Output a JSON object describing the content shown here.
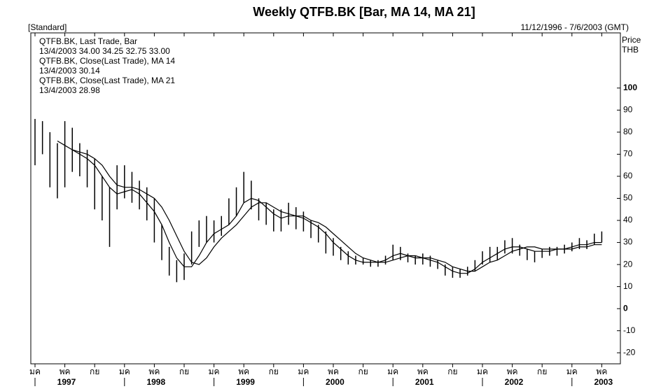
{
  "chart_data": {
    "type": "bar-ma",
    "title": "Weekly QTFB.BK [Bar, MA 14, MA 21]",
    "subtitle": "[Standard]",
    "date_range": "11/12/1996 - 7/6/2003 (GMT)",
    "legend_text": [
      "QTFB.BK, Last Trade, Bar",
      "13/4/2003 34.00 34.25 32.75 33.00",
      "QTFB.BK, Close(Last Trade), MA 14",
      "13/4/2003 30.14",
      "QTFB.BK, Close(Last Trade), MA 21",
      "13/4/2003 28.98"
    ],
    "y_label": [
      "Price",
      "THB"
    ],
    "ylim": [
      -25,
      125
    ],
    "yticks": [
      100,
      90,
      80,
      70,
      60,
      50,
      40,
      30,
      20,
      10,
      0,
      -10,
      -20
    ],
    "color": "#000000",
    "x": [
      "1997-01",
      "1997-02",
      "1997-03",
      "1997-04",
      "1997-05",
      "1997-06",
      "1997-07",
      "1997-08",
      "1997-09",
      "1997-10",
      "1997-11",
      "1997-12",
      "1998-01",
      "1998-02",
      "1998-03",
      "1998-04",
      "1998-05",
      "1998-06",
      "1998-07",
      "1998-08",
      "1998-09",
      "1998-10",
      "1998-11",
      "1998-12",
      "1999-01",
      "1999-02",
      "1999-03",
      "1999-04",
      "1999-05",
      "1999-06",
      "1999-07",
      "1999-08",
      "1999-09",
      "1999-10",
      "1999-11",
      "1999-12",
      "2000-01",
      "2000-02",
      "2000-03",
      "2000-04",
      "2000-05",
      "2000-06",
      "2000-07",
      "2000-08",
      "2000-09",
      "2000-10",
      "2000-11",
      "2000-12",
      "2001-01",
      "2001-02",
      "2001-03",
      "2001-04",
      "2001-05",
      "2001-06",
      "2001-07",
      "2001-08",
      "2001-09",
      "2001-10",
      "2001-11",
      "2001-12",
      "2002-01",
      "2002-02",
      "2002-03",
      "2002-04",
      "2002-05",
      "2002-06",
      "2002-07",
      "2002-08",
      "2002-09",
      "2002-10",
      "2002-11",
      "2002-12",
      "2003-01",
      "2003-02",
      "2003-03",
      "2003-04",
      "2003-05"
    ],
    "high": [
      86,
      85,
      80,
      75,
      85,
      82,
      75,
      72,
      68,
      60,
      55,
      65,
      65,
      62,
      58,
      55,
      50,
      38,
      28,
      22,
      25,
      35,
      40,
      42,
      40,
      42,
      50,
      55,
      62,
      58,
      50,
      48,
      45,
      45,
      48,
      46,
      44,
      40,
      38,
      35,
      32,
      28,
      26,
      24,
      23,
      22,
      22,
      24,
      29,
      28,
      25,
      24,
      25,
      24,
      22,
      20,
      19,
      18,
      19,
      22,
      26,
      28,
      28,
      31,
      32,
      29,
      27,
      26,
      27,
      28,
      28,
      29,
      30,
      32,
      31,
      34,
      35
    ],
    "low": [
      65,
      70,
      55,
      50,
      55,
      62,
      60,
      55,
      45,
      40,
      28,
      45,
      50,
      48,
      45,
      40,
      30,
      22,
      15,
      12,
      13,
      20,
      28,
      30,
      30,
      33,
      38,
      42,
      48,
      45,
      40,
      38,
      35,
      35,
      38,
      36,
      35,
      32,
      30,
      25,
      24,
      22,
      20,
      20,
      20,
      19,
      19,
      20,
      22,
      22,
      21,
      20,
      20,
      19,
      18,
      15,
      14,
      14,
      15,
      17,
      20,
      21,
      22,
      25,
      25,
      24,
      22,
      21,
      23,
      24,
      24,
      25,
      26,
      27,
      27,
      29,
      30
    ],
    "series": [
      {
        "name": "MA 14",
        "color": "#000000",
        "values": [
          null,
          null,
          null,
          76,
          74,
          72,
          70,
          68,
          65,
          60,
          55,
          52,
          53,
          54,
          52,
          48,
          44,
          38,
          30,
          23,
          19,
          19,
          24,
          30,
          34,
          36,
          38,
          42,
          48,
          50,
          49,
          46,
          43,
          41,
          42,
          42,
          41,
          39,
          37,
          34,
          30,
          27,
          24,
          22,
          21,
          21,
          21,
          22,
          24,
          25,
          24,
          23,
          23,
          22,
          21,
          19,
          17,
          16,
          16,
          18,
          21,
          23,
          25,
          27,
          28,
          28,
          27,
          26,
          26,
          26,
          27,
          27,
          28,
          29,
          29,
          30,
          30
        ]
      },
      {
        "name": "MA 21",
        "color": "#000000",
        "values": [
          null,
          null,
          null,
          null,
          null,
          72,
          71,
          70,
          68,
          65,
          60,
          56,
          55,
          55,
          54,
          52,
          50,
          46,
          40,
          33,
          26,
          21,
          20,
          23,
          28,
          32,
          35,
          38,
          42,
          46,
          48,
          48,
          46,
          44,
          43,
          42,
          42,
          40,
          39,
          37,
          34,
          31,
          28,
          25,
          23,
          22,
          21,
          21,
          22,
          23,
          24,
          24,
          23,
          23,
          22,
          21,
          19,
          18,
          17,
          17,
          19,
          21,
          22,
          24,
          26,
          27,
          28,
          28,
          27,
          27,
          27,
          27,
          27,
          28,
          28,
          29,
          29
        ]
      }
    ],
    "xticks": [
      {
        "value": "1997-01",
        "label": "มค"
      },
      {
        "value": "1997-05",
        "label": "พค"
      },
      {
        "value": "1997-09",
        "label": "กย"
      },
      {
        "value": "1998-01",
        "label": "มค"
      },
      {
        "value": "1998-05",
        "label": "พค"
      },
      {
        "value": "1998-09",
        "label": "กย"
      },
      {
        "value": "1999-01",
        "label": "มค"
      },
      {
        "value": "1999-05",
        "label": "พค"
      },
      {
        "value": "1999-09",
        "label": "กย"
      },
      {
        "value": "2000-01",
        "label": "มค"
      },
      {
        "value": "2000-05",
        "label": "พค"
      },
      {
        "value": "2000-09",
        "label": "กย"
      },
      {
        "value": "2001-01",
        "label": "มค"
      },
      {
        "value": "2001-05",
        "label": "พค"
      },
      {
        "value": "2001-09",
        "label": "กย"
      },
      {
        "value": "2002-01",
        "label": "มค"
      },
      {
        "value": "2002-05",
        "label": "พค"
      },
      {
        "value": "2002-09",
        "label": "กย"
      },
      {
        "value": "2003-01",
        "label": "มค"
      },
      {
        "value": "2003-05",
        "label": "พค"
      }
    ],
    "year_labels": [
      "1997",
      "1998",
      "1999",
      "2000",
      "2001",
      "2002",
      "2003"
    ]
  }
}
